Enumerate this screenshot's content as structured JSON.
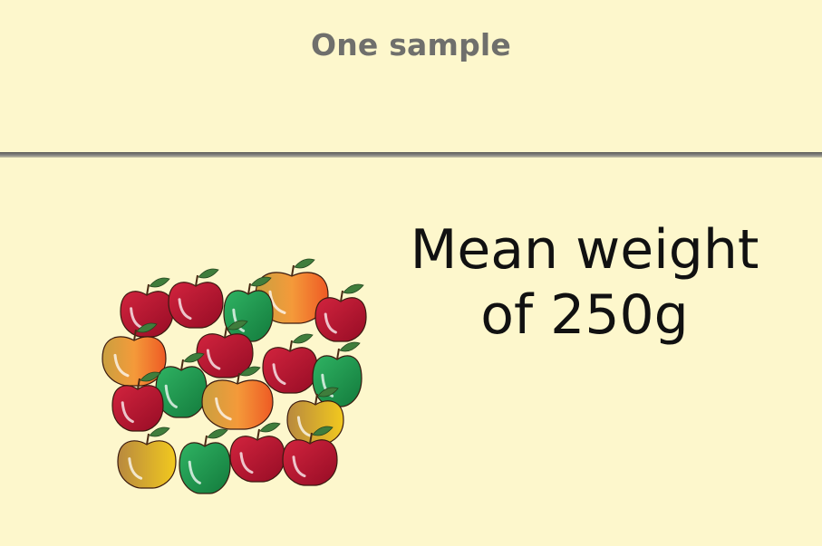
{
  "header": {
    "title": "One sample"
  },
  "caption": {
    "line1": "Mean weight",
    "line2": "of 250g"
  },
  "colors": {
    "background": "#fdf7cc",
    "red_apple": "#b0122f",
    "green_apple": "#1f9a4f",
    "orange_apple": "#f08a2c",
    "yellow_apple": "#e2b72a"
  },
  "illustration": {
    "name": "apple-sample-pile"
  }
}
